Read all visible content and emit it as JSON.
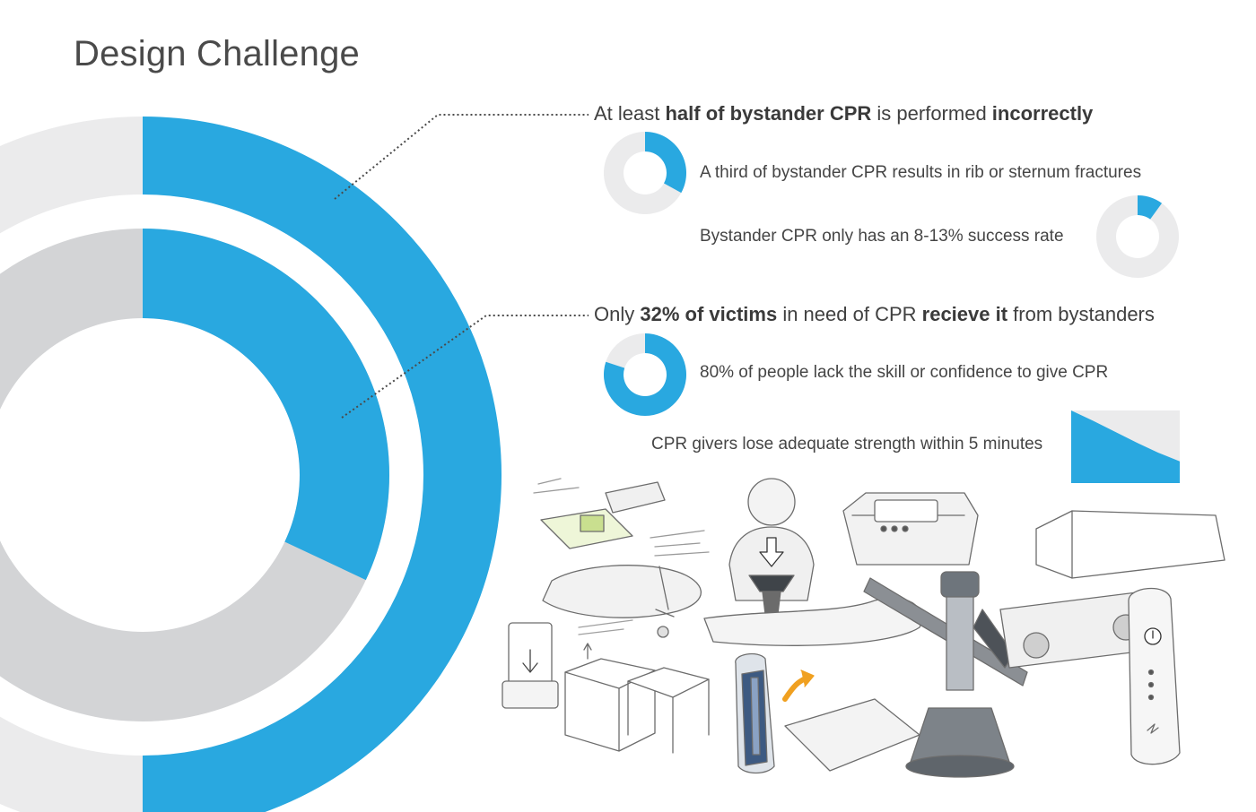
{
  "page": {
    "title": "Design Challenge"
  },
  "colors": {
    "accent": "#29a8e0",
    "ring_light": "#ebebec",
    "ring_mid": "#d3d4d6",
    "leader": "#4a4a4a"
  },
  "headlines": [
    {
      "parts": [
        {
          "text": "At least ",
          "bold": false
        },
        {
          "text": "half of bystander CPR",
          "bold": true
        },
        {
          "text": " is performed ",
          "bold": false
        },
        {
          "text": "incorrectly",
          "bold": true
        }
      ]
    },
    {
      "parts": [
        {
          "text": "Only ",
          "bold": false
        },
        {
          "text": "32% of victims",
          "bold": true
        },
        {
          "text": " in need of CPR ",
          "bold": false
        },
        {
          "text": "recieve it",
          "bold": true
        },
        {
          "text": " from bystanders",
          "bold": false
        }
      ]
    }
  ],
  "stats": [
    {
      "text": "A third of bystander CPR results in rib or sternum fractures"
    },
    {
      "text": "Bystander CPR only has an 8-13% success rate"
    },
    {
      "text": "80% of people lack the skill or confidence to give CPR"
    },
    {
      "text": "CPR givers lose adequate strength within 5 minutes"
    }
  ],
  "chart_data": [
    {
      "type": "pie",
      "variant": "donut",
      "values": [
        50,
        50
      ],
      "highlight": "first"
    },
    {
      "type": "pie",
      "variant": "donut",
      "values": [
        32,
        68
      ],
      "highlight": "first"
    },
    {
      "type": "pie",
      "variant": "donut",
      "values": [
        33,
        67
      ],
      "highlight": "first"
    },
    {
      "type": "pie",
      "variant": "donut",
      "values": [
        10,
        90
      ],
      "highlight": "first"
    },
    {
      "type": "pie",
      "variant": "donut",
      "values": [
        80,
        20
      ],
      "highlight": "first"
    },
    {
      "type": "area",
      "x": [
        0,
        1,
        2,
        3,
        4,
        5
      ],
      "values": [
        100,
        86,
        71,
        56,
        42,
        30
      ],
      "ylim": [
        0,
        100
      ],
      "xlabel": "",
      "ylabel": ""
    }
  ]
}
